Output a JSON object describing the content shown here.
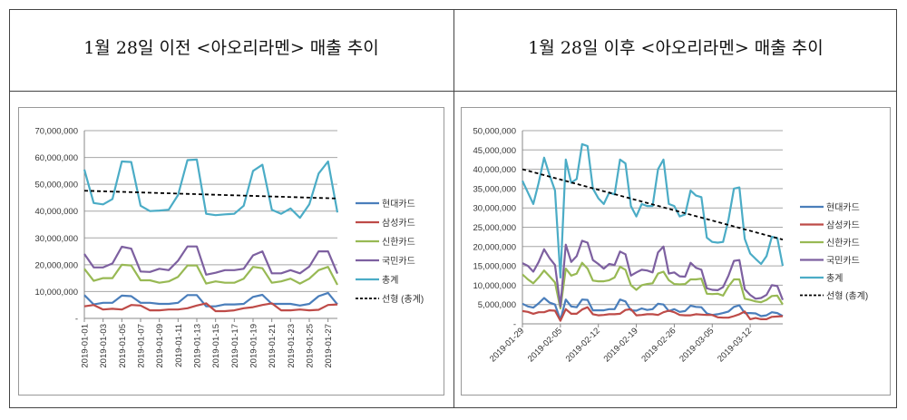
{
  "headers": [
    "1월 28일 이전 <아오리라멘> 매출 추이",
    "1월 28일 이후 <아오리라멘> 매출 추이"
  ],
  "chart_data": [
    {
      "type": "line",
      "x_range": [
        "2019-01-01",
        "2019-01-28"
      ],
      "x_tick_labels": [
        "2019-01-01",
        "2019-01-03",
        "2019-01-05",
        "2019-01-07",
        "2019-01-09",
        "2019-01-11",
        "2019-01-13",
        "2019-01-15",
        "2019-01-17",
        "2019-01-19",
        "2019-01-21",
        "2019-01-23",
        "2019-01-25",
        "2019-01-27"
      ],
      "ylim": [
        0,
        70000000
      ],
      "y_tick_labels": [
        "-",
        "10,000,000",
        "20,000,000",
        "30,000,000",
        "40,000,000",
        "50,000,000",
        "60,000,000",
        "70,000,000"
      ],
      "grid": true,
      "legend_position": "right",
      "series": [
        {
          "name": "현대카드",
          "color": "#4a7ebb",
          "values": [
            8700000.0,
            5200000.0,
            5800000.0,
            5800000.0,
            8500000.0,
            8300000.0,
            5800000.0,
            5800000.0,
            5400000.0,
            5400000.0,
            5800000.0,
            8700000.0,
            8700000.0,
            4500000.0,
            4500000.0,
            5200000.0,
            5200000.0,
            5400000.0,
            8000000.0,
            8800000.0,
            5400000.0,
            5400000.0,
            5400000.0,
            4800000.0,
            5400000.0,
            8300000.0,
            9500000.0,
            5200000.0
          ]
        },
        {
          "name": "삼성카드",
          "color": "#be4b48",
          "values": [
            4500000.0,
            5000000.0,
            3300000.0,
            3600000.0,
            3300000.0,
            5000000.0,
            4800000.0,
            3000000.0,
            3000000.0,
            3300000.0,
            3300000.0,
            3800000.0,
            4800000.0,
            5600000.0,
            2700000.0,
            2700000.0,
            3000000.0,
            3800000.0,
            4200000.0,
            5000000.0,
            5600000.0,
            3000000.0,
            3000000.0,
            3300000.0,
            3000000.0,
            3200000.0,
            5000000.0,
            5200000.0
          ]
        },
        {
          "name": "신한카드",
          "color": "#98b954",
          "values": [
            18500000.0,
            14000000.0,
            15000000.0,
            15000000.0,
            20000000.0,
            19700000.0,
            14200000.0,
            14200000.0,
            13300000.0,
            13800000.0,
            15500000.0,
            19700000.0,
            19700000.0,
            13000000.0,
            13800000.0,
            13300000.0,
            13300000.0,
            14800000.0,
            19200000.0,
            18700000.0,
            13300000.0,
            13800000.0,
            14800000.0,
            13000000.0,
            14800000.0,
            18000000.0,
            19200000.0,
            12500000.0
          ]
        },
        {
          "name": "국민카드",
          "color": "#7d60a0",
          "values": [
            24000000.0,
            19000000.0,
            19000000.0,
            20500000.0,
            26700000.0,
            26000000.0,
            17500000.0,
            17300000.0,
            18500000.0,
            18000000.0,
            21500000.0,
            26800000.0,
            26800000.0,
            16300000.0,
            17000000.0,
            18000000.0,
            18000000.0,
            18500000.0,
            23500000.0,
            25000000.0,
            16800000.0,
            16800000.0,
            18000000.0,
            16800000.0,
            19300000.0,
            25000000.0,
            25000000.0,
            16700000.0
          ]
        },
        {
          "name": "총계",
          "color": "#4bacc6",
          "values": [
            55500000.0,
            43000000.0,
            42500000.0,
            44500000.0,
            58500000.0,
            58300000.0,
            42000000.0,
            40000000.0,
            40200000.0,
            40500000.0,
            46000000.0,
            59000000.0,
            59200000.0,
            39000000.0,
            38500000.0,
            38800000.0,
            39000000.0,
            42000000.0,
            55000000.0,
            57300000.0,
            40500000.0,
            39000000.0,
            41000000.0,
            37500000.0,
            42500000.0,
            54000000.0,
            58500000.0,
            39500000.0
          ]
        }
      ],
      "trendline": {
        "name": "선형 (총계)",
        "color": "#000000",
        "style": "dashed",
        "values": [
          47600000.0,
          44700000.0
        ]
      }
    },
    {
      "type": "line",
      "x_range": [
        "2019-01-29",
        "2019-03-17"
      ],
      "x_tick_labels": [
        "2019-01-29",
        "2019-02-05",
        "2019-02-12",
        "2019-02-19",
        "2019-02-26",
        "2019-03-05",
        "2019-03-12"
      ],
      "ylim": [
        0,
        50000000
      ],
      "y_tick_labels": [
        "-",
        "5,000,000",
        "10,000,000",
        "15,000,000",
        "20,000,000",
        "25,000,000",
        "30,000,000",
        "35,000,000",
        "40,000,000",
        "45,000,000",
        "50,000,000"
      ],
      "grid": true,
      "legend_position": "right",
      "series": [
        {
          "name": "현대카드",
          "color": "#4a7ebb",
          "values": [
            5200000.0,
            4500000.0,
            4200000.0,
            5300000.0,
            6700000.0,
            5500000.0,
            5000000.0,
            1000000.0,
            6300000.0,
            4500000.0,
            4300000.0,
            6300000.0,
            6200000.0,
            3500000.0,
            3500000.0,
            3500000.0,
            3800000.0,
            3800000.0,
            6300000.0,
            5800000.0,
            3500000.0,
            3400000.0,
            4000000.0,
            3600000.0,
            3800000.0,
            5200000.0,
            5000000.0,
            3300000.0,
            3800000.0,
            3100000.0,
            3300000.0,
            4700000.0,
            4400000.0,
            4300000.0,
            2700000.0,
            2300000.0,
            2500000.0,
            2800000.0,
            3200000.0,
            4400000.0,
            4800000.0,
            2800000.0,
            2800000.0,
            2700000.0,
            2000000.0,
            2200000.0,
            3000000.0,
            2800000.0,
            2000000.0
          ]
        },
        {
          "name": "삼성카드",
          "color": "#be4b48",
          "values": [
            3300000.0,
            3100000.0,
            2600000.0,
            3000000.0,
            3000000.0,
            3500000.0,
            3400000.0,
            800000.0,
            3800000.0,
            2600000.0,
            2600000.0,
            3700000.0,
            4300000.0,
            2500000.0,
            2200000.0,
            2300000.0,
            2500000.0,
            2500000.0,
            2600000.0,
            3600000.0,
            3800000.0,
            2200000.0,
            2300000.0,
            2500000.0,
            2500000.0,
            2300000.0,
            3000000.0,
            3400000.0,
            3000000.0,
            2300000.0,
            2200000.0,
            2200000.0,
            2500000.0,
            2400000.0,
            2300000.0,
            2300000.0,
            1700000.0,
            1600000.0,
            1600000.0,
            2000000.0,
            2500000.0,
            3200000.0,
            1200000.0,
            1500000.0,
            1200000.0,
            1200000.0,
            1800000.0,
            1900000.0,
            2000000.0
          ]
        },
        {
          "name": "신한카드",
          "color": "#98b954",
          "values": [
            12800000.0,
            11500000.0,
            10500000.0,
            12000000.0,
            13800000.0,
            12300000.0,
            10700000.0,
            4000000.0,
            14300000.0,
            12500000.0,
            13000000.0,
            15800000.0,
            14300000.0,
            11200000.0,
            11000000.0,
            11000000.0,
            11300000.0,
            12000000.0,
            14800000.0,
            14000000.0,
            10000000.0,
            8800000.0,
            10000000.0,
            10300000.0,
            10500000.0,
            13000000.0,
            13500000.0,
            11300000.0,
            10300000.0,
            10200000.0,
            10300000.0,
            11500000.0,
            11500000.0,
            11700000.0,
            7800000.0,
            7700000.0,
            7800000.0,
            7300000.0,
            9700000.0,
            11500000.0,
            11500000.0,
            6500000.0,
            6200000.0,
            5800000.0,
            5600000.0,
            6200000.0,
            7200000.0,
            7300000.0,
            5000000.0
          ]
        },
        {
          "name": "국민카드",
          "color": "#7d60a0",
          "values": [
            15700000.0,
            15000000.0,
            13500000.0,
            16000000.0,
            19300000.0,
            17000000.0,
            15200000.0,
            4500000.0,
            20500000.0,
            16000000.0,
            17500000.0,
            21500000.0,
            21000000.0,
            16500000.0,
            15500000.0,
            14300000.0,
            15500000.0,
            15200000.0,
            18700000.0,
            18000000.0,
            12500000.0,
            13300000.0,
            14000000.0,
            13800000.0,
            13300000.0,
            18500000.0,
            20000000.0,
            13000000.0,
            13300000.0,
            12300000.0,
            12200000.0,
            15800000.0,
            14500000.0,
            14000000.0,
            9200000.0,
            8800000.0,
            8700000.0,
            9500000.0,
            12500000.0,
            16300000.0,
            16500000.0,
            9000000.0,
            7500000.0,
            6500000.0,
            6700000.0,
            7500000.0,
            10000000.0,
            9800000.0,
            6200000.0
          ]
        },
        {
          "name": "총계",
          "color": "#4bacc6",
          "values": [
            37000000.0,
            34000000.0,
            31000000.0,
            36500000.0,
            43000000.0,
            38500000.0,
            34500000.0,
            12000000.0,
            42500000.0,
            36500000.0,
            37500000.0,
            46500000.0,
            46000000.0,
            35000000.0,
            32500000.0,
            31000000.0,
            34000000.0,
            33500000.0,
            42500000.0,
            41500000.0,
            30500000.0,
            27800000.0,
            31000000.0,
            30500000.0,
            30500000.0,
            40000000.0,
            42500000.0,
            31000000.0,
            30500000.0,
            27800000.0,
            28300000.0,
            34500000.0,
            33200000.0,
            32800000.0,
            22300000.0,
            21200000.0,
            21000000.0,
            21200000.0,
            27000000.0,
            35000000.0,
            35300000.0,
            22000000.0,
            18200000.0,
            16800000.0,
            15500000.0,
            17500000.0,
            22500000.0,
            22200000.0,
            15000000.0
          ]
        }
      ],
      "trendline": {
        "name": "선형 (총계)",
        "color": "#000000",
        "style": "dashed",
        "values": [
          40000000.0,
          21800000.0
        ]
      }
    }
  ]
}
